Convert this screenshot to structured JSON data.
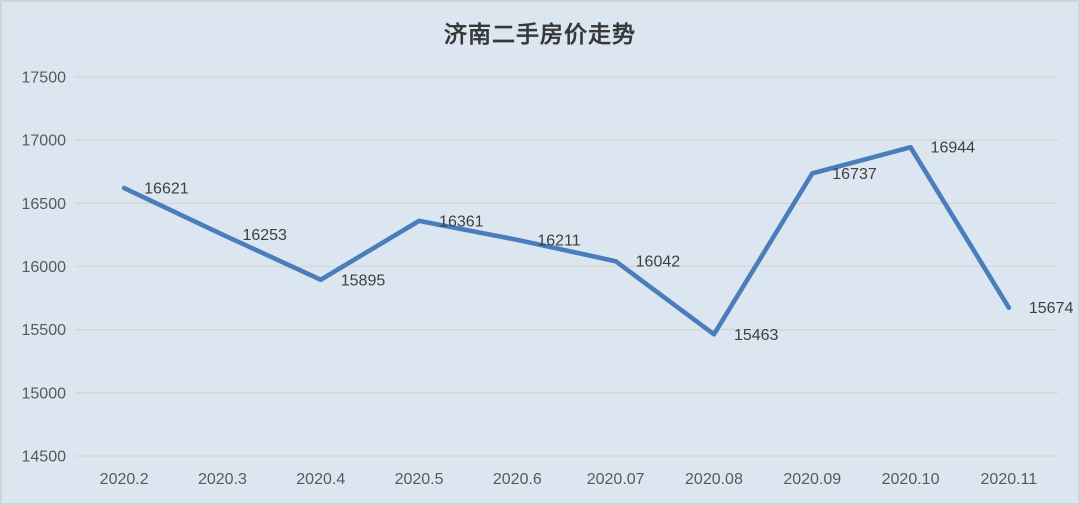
{
  "frame": {
    "background_color": "#dce6f1",
    "border_color": "#d1d4d7"
  },
  "chart_data": {
    "type": "line",
    "title": "济南二手房价走势",
    "categories": [
      "2020.2",
      "2020.3",
      "2020.4",
      "2020.5",
      "2020.6",
      "2020.07",
      "2020.08",
      "2020.09",
      "2020.10",
      "2020.11"
    ],
    "values": [
      16621,
      16253,
      15895,
      16361,
      16211,
      16042,
      15463,
      16737,
      16944,
      15674
    ],
    "data_labels": [
      16621,
      16253,
      15895,
      16361,
      16211,
      16042,
      15463,
      16737,
      16944,
      15674
    ],
    "y_ticks": [
      17500,
      17000,
      16500,
      16000,
      15500,
      15000,
      14500
    ],
    "ylim": [
      14500,
      17500
    ],
    "grid": true,
    "legend": "none",
    "colors": {
      "line": "#4A7EBB",
      "gridline": "#d5d5d2",
      "tick_label": "#595959",
      "data_label": "#3f3f3f",
      "title": "#383838"
    }
  }
}
